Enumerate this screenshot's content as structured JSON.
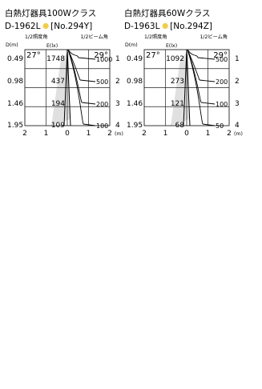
{
  "chart_data": [
    {
      "type": "table",
      "title": "白熱灯器具100Wクラス",
      "model": "D-1962L",
      "model_ref": "[No.294Y]",
      "dot_color": "#f2cc4a",
      "label_half_illum": "1/2照度角",
      "label_half_beam": "1/2ビーム角",
      "col_distance": "D(m)",
      "col_illuminance": "E(lx)",
      "illum_angle": "27°",
      "beam_angle": "29°",
      "rows": [
        {
          "d": "0.49",
          "e": "1748",
          "beam_lx": "1000",
          "idx": "1"
        },
        {
          "d": "0.98",
          "e": "437",
          "beam_lx": "500",
          "idx": "2"
        },
        {
          "d": "1.46",
          "e": "194",
          "beam_lx": "200",
          "idx": "3"
        },
        {
          "d": "1.95",
          "e": "109",
          "beam_lx": "100",
          "idx": "4"
        }
      ],
      "x_ticks": [
        "2",
        "1",
        "0",
        "1",
        "2"
      ],
      "x_unit": "(m)",
      "x_tick_values": [
        -2,
        -1,
        0,
        1,
        2
      ],
      "isolux_lx": [
        1000,
        500,
        200,
        100
      ]
    },
    {
      "type": "table",
      "title": "白熱灯器具60Wクラス",
      "model": "D-1963L",
      "model_ref": "[No.294Z]",
      "dot_color": "#f2cc4a",
      "label_half_illum": "1/2照度角",
      "label_half_beam": "1/2ビーム角",
      "col_distance": "D(m)",
      "col_illuminance": "E(lx)",
      "illum_angle": "27°",
      "beam_angle": "29°",
      "rows": [
        {
          "d": "0.49",
          "e": "1092",
          "beam_lx": "500",
          "idx": "1"
        },
        {
          "d": "0.98",
          "e": "273",
          "beam_lx": "200",
          "idx": "2"
        },
        {
          "d": "1.46",
          "e": "121",
          "beam_lx": "100",
          "idx": "3"
        },
        {
          "d": "1.95",
          "e": "68",
          "beam_lx": "50",
          "idx": "4"
        }
      ],
      "x_ticks": [
        "2",
        "1",
        "0",
        "1",
        "2"
      ],
      "x_unit": "(m)",
      "x_tick_values": [
        -2,
        -1,
        0,
        1,
        2
      ],
      "isolux_lx": [
        500,
        200,
        100,
        50
      ]
    }
  ]
}
